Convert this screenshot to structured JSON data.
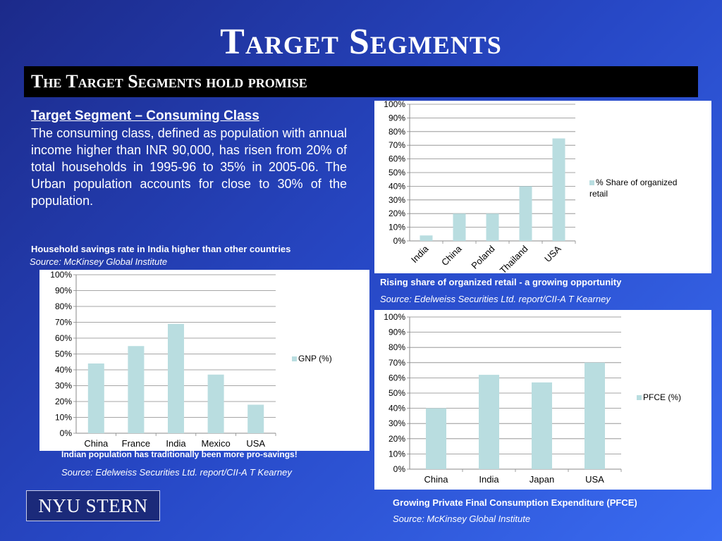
{
  "title": "Target Segments",
  "banner": "The Target Segments hold promise",
  "intro": {
    "heading": "Target Segment – Consuming Class",
    "body": "The consuming class, defined as population with annual income higher than INR 90,000, has risen from 20% of total households in 1995-96 to 35% in 2005-06. The Urban population accounts for close to 30% of the population."
  },
  "savings": {
    "heading": "Household savings rate in India higher than other countries",
    "source_top": "Source: McKinsey Global Institute",
    "caption": "Indian population has traditionally been more pro-savings!",
    "source_bottom": "Source: Edelweiss Securities Ltd. report/CII-A T Kearney"
  },
  "retail": {
    "caption": "Rising share of organized retail - a growing opportunity",
    "source": "Source: Edelweiss Securities Ltd. report/CII-A T Kearney"
  },
  "pfce": {
    "caption": "Growing Private Final Consumption Expenditure (PFCE)",
    "source": "Source: McKinsey Global Institute"
  },
  "logo": {
    "text": "NYU STERN"
  },
  "colors": {
    "bar": "#b9dde0",
    "plot_bg": "#ffffff",
    "grid": "#888888"
  },
  "chart_data": [
    {
      "id": "retail",
      "type": "bar",
      "categories": [
        "India",
        "China",
        "Poland",
        "Thailand",
        "USA"
      ],
      "series": [
        {
          "name": "% Share of organized retail",
          "values": [
            4,
            20,
            20,
            40,
            75
          ]
        }
      ],
      "ylim": [
        0,
        100
      ],
      "ytick_step": 10,
      "yformat": "percent",
      "xlabel_rotation": -45,
      "legend": "right",
      "grid": true
    },
    {
      "id": "savings",
      "type": "bar",
      "categories": [
        "China",
        "France",
        "India",
        "Mexico",
        "USA"
      ],
      "series": [
        {
          "name": "GNP (%)",
          "values": [
            44,
            55,
            69,
            37,
            18
          ]
        }
      ],
      "ylim": [
        0,
        100
      ],
      "ytick_step": 10,
      "yformat": "percent",
      "legend": "right",
      "grid": true
    },
    {
      "id": "pfce",
      "type": "bar",
      "categories": [
        "China",
        "India",
        "Japan",
        "USA"
      ],
      "series": [
        {
          "name": "PFCE (%)",
          "values": [
            40,
            62,
            57,
            70
          ]
        }
      ],
      "ylim": [
        0,
        100
      ],
      "ytick_step": 10,
      "yformat": "percent",
      "legend": "right",
      "grid": true
    }
  ]
}
